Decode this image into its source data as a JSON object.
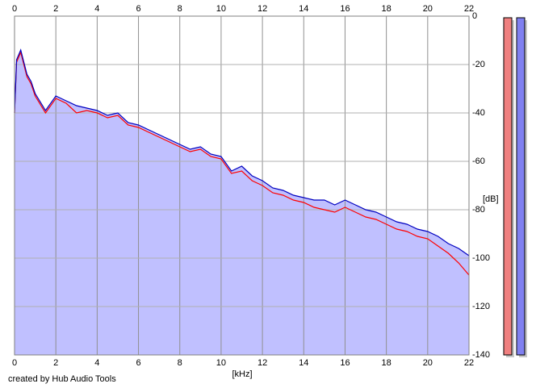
{
  "chart_data": {
    "type": "line",
    "xlabel": "[kHz]",
    "ylabel": "[dB]",
    "footer": "created by Hub Audio Tools",
    "x": [
      0,
      0.1,
      0.3,
      0.6,
      0.8,
      1,
      1.5,
      2,
      2.5,
      3,
      3.5,
      4,
      4.5,
      5,
      5.5,
      6,
      6.5,
      7,
      7.5,
      8,
      8.5,
      9,
      9.5,
      10,
      10.5,
      11,
      11.5,
      12,
      12.5,
      13,
      13.5,
      14,
      14.5,
      15,
      15.5,
      16,
      16.5,
      17,
      17.5,
      18,
      18.5,
      19,
      19.5,
      20,
      20.5,
      21,
      21.5,
      22
    ],
    "series": [
      {
        "color": "#ff0000",
        "values": [
          -40,
          -19,
          -15,
          -25,
          -28,
          -33,
          -40,
          -34,
          -36,
          -40,
          -39,
          -40,
          -42,
          -41,
          -45,
          -46,
          -48,
          -50,
          -52,
          -54,
          -56,
          -55,
          -58,
          -59,
          -65,
          -64,
          -68,
          -70,
          -73,
          -74,
          -76,
          -77,
          -79,
          -80,
          -81,
          -79,
          -81,
          -83,
          -84,
          -86,
          -88,
          -89,
          -91,
          -92,
          -95,
          -98,
          -102,
          -107
        ]
      },
      {
        "color": "#0000c0",
        "fill": "#c0c0ff",
        "values": [
          -40,
          -18,
          -14,
          -24,
          -27,
          -32,
          -39,
          -33,
          -35,
          -37,
          -38,
          -39,
          -41,
          -40,
          -44,
          -45,
          -47,
          -49,
          -51,
          -53,
          -55,
          -54,
          -57,
          -58,
          -64,
          -62,
          -66,
          -68,
          -71,
          -72,
          -74,
          -75,
          -76,
          -76,
          -78,
          -76,
          -78,
          -80,
          -81,
          -83,
          -85,
          -86,
          -88,
          -89,
          -91,
          -94,
          -96,
          -99
        ]
      }
    ],
    "xlim": [
      0,
      22
    ],
    "xticks": [
      0,
      2,
      4,
      6,
      8,
      10,
      12,
      14,
      16,
      18,
      20,
      22
    ],
    "ylim": [
      -140,
      0
    ],
    "yticks": [
      0,
      -20,
      -40,
      -60,
      -80,
      -100,
      -120,
      -140
    ],
    "grid": true
  }
}
